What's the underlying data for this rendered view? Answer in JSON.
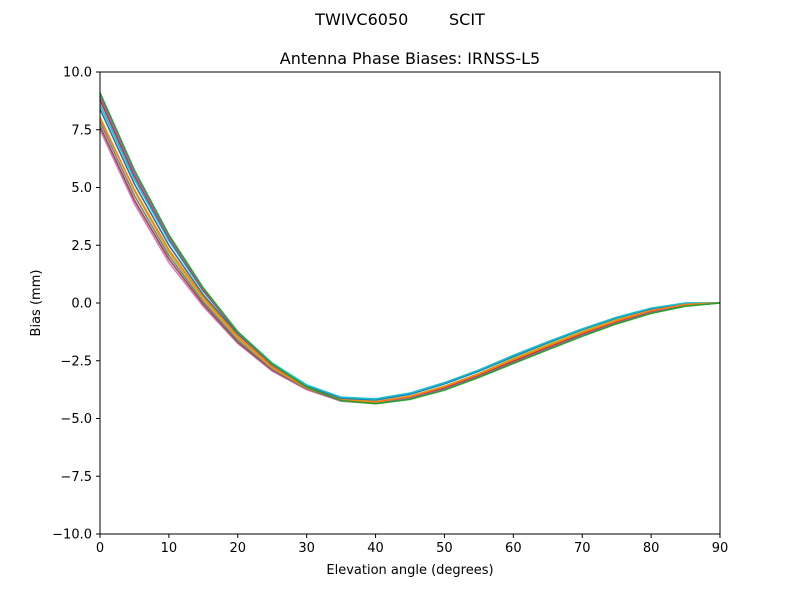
{
  "figure": {
    "suptitle": "TWIVC6050        SCIT"
  },
  "chart_data": {
    "type": "line",
    "title": "Antenna Phase Biases: IRNSS-L5",
    "xlabel": "Elevation angle (degrees)",
    "ylabel": "Bias (mm)",
    "xlim": [
      0,
      90
    ],
    "ylim": [
      -10,
      10
    ],
    "xticks": [
      0,
      10,
      20,
      30,
      40,
      50,
      60,
      70,
      80,
      90
    ],
    "xtick_labels": [
      "0",
      "10",
      "20",
      "30",
      "40",
      "50",
      "60",
      "70",
      "80",
      "90"
    ],
    "yticks": [
      10,
      7.5,
      5,
      2.5,
      0,
      -2.5,
      -5,
      -7.5,
      -10
    ],
    "ytick_labels": [
      "10.0",
      "7.5",
      "5.0",
      "2.5",
      "0.0",
      "−2.5",
      "−5.0",
      "−7.5",
      "−10.0"
    ],
    "grid": false,
    "legend": "none",
    "x": [
      0,
      5,
      10,
      15,
      20,
      25,
      30,
      35,
      40,
      45,
      50,
      55,
      60,
      65,
      70,
      75,
      80,
      85,
      90
    ],
    "series": [
      {
        "color": "#e377c2",
        "values": [
          7.5,
          4.3,
          1.75,
          -0.15,
          -1.75,
          -2.95,
          -3.75,
          -4.25,
          -4.35,
          -4.15,
          -3.75,
          -3.2,
          -2.55,
          -1.95,
          -1.35,
          -0.8,
          -0.35,
          -0.05,
          0.0
        ]
      },
      {
        "color": "#8c564b",
        "values": [
          7.65,
          4.45,
          1.9,
          -0.05,
          -1.7,
          -2.9,
          -3.72,
          -4.22,
          -4.32,
          -4.1,
          -3.7,
          -3.15,
          -2.5,
          -1.9,
          -1.3,
          -0.77,
          -0.32,
          -0.04,
          0.0
        ]
      },
      {
        "color": "#7f7f7f",
        "values": [
          7.85,
          4.65,
          2.05,
          0.05,
          -1.6,
          -2.85,
          -3.7,
          -4.2,
          -4.3,
          -4.07,
          -3.65,
          -3.1,
          -2.45,
          -1.85,
          -1.27,
          -0.74,
          -0.3,
          -0.03,
          0.0
        ]
      },
      {
        "color": "#bcbd22",
        "values": [
          8.05,
          4.85,
          2.2,
          0.15,
          -1.52,
          -2.8,
          -3.68,
          -4.18,
          -4.27,
          -4.03,
          -3.6,
          -3.05,
          -2.4,
          -1.8,
          -1.23,
          -0.7,
          -0.28,
          -0.02,
          0.0
        ]
      },
      {
        "color": "#1f77b4",
        "values": [
          8.4,
          5.15,
          2.5,
          0.35,
          -1.35,
          -2.68,
          -3.6,
          -4.12,
          -4.2,
          -3.95,
          -3.5,
          -2.95,
          -2.32,
          -1.72,
          -1.15,
          -0.65,
          -0.25,
          -0.01,
          0.0
        ]
      },
      {
        "color": "#17becf",
        "values": [
          8.6,
          5.35,
          2.7,
          0.5,
          -1.25,
          -2.6,
          -3.55,
          -4.08,
          -4.15,
          -3.9,
          -3.45,
          -2.9,
          -2.27,
          -1.68,
          -1.12,
          -0.62,
          -0.22,
          0.0,
          0.0
        ]
      },
      {
        "color": "#d62728",
        "values": [
          8.8,
          5.5,
          2.8,
          0.55,
          -1.3,
          -2.7,
          -3.65,
          -4.2,
          -4.3,
          -4.1,
          -3.7,
          -3.15,
          -2.55,
          -1.95,
          -1.37,
          -0.85,
          -0.4,
          -0.1,
          0.0
        ]
      },
      {
        "color": "#9467bd",
        "values": [
          8.95,
          5.6,
          2.85,
          0.6,
          -1.28,
          -2.68,
          -3.65,
          -4.22,
          -4.33,
          -4.13,
          -3.73,
          -3.18,
          -2.58,
          -1.98,
          -1.4,
          -0.87,
          -0.42,
          -0.12,
          0.0
        ]
      },
      {
        "color": "#ff7f0e",
        "values": [
          8.0,
          4.9,
          2.3,
          0.25,
          -1.45,
          -2.78,
          -3.68,
          -4.2,
          -4.28,
          -4.05,
          -3.62,
          -3.08,
          -2.45,
          -1.86,
          -1.28,
          -0.76,
          -0.33,
          -0.06,
          0.0
        ]
      },
      {
        "color": "#2ca02c",
        "values": [
          9.1,
          5.75,
          2.95,
          0.65,
          -1.25,
          -2.65,
          -3.65,
          -4.23,
          -4.36,
          -4.17,
          -3.77,
          -3.22,
          -2.62,
          -2.02,
          -1.44,
          -0.9,
          -0.45,
          -0.14,
          0.0
        ]
      }
    ]
  }
}
